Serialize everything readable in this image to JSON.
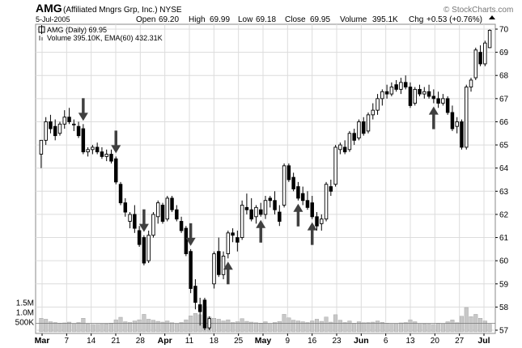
{
  "header": {
    "symbol": "AMG",
    "company": "(Affiliated Mngrs Grp, Inc.) NYSE",
    "date": "5-Jul-2005",
    "open_label": "Open",
    "open": "69.20",
    "high_label": "High",
    "high": "69.99",
    "low_label": "Low",
    "low": "69.18",
    "close_label": "Close",
    "close": "69.95",
    "volume_label": "Volume",
    "volume": "395.1K",
    "chg_label": "Chg",
    "chg": "+0.53 (+0.76%)",
    "watermark": "© StockCharts.com"
  },
  "legend": {
    "price_line": "AMG (Daily) 69.95",
    "volume_line": "Volume 395.10K, EMA(60) 432.31K"
  },
  "colors": {
    "up": "#ffffff",
    "down": "#000000",
    "volume_bar": "#c8c8c8",
    "grid": "#dcdcdc",
    "arrow": "#404040"
  },
  "chart_data": {
    "type": "candlestick",
    "title": "AMG (Daily) 69.95",
    "ylim": [
      57,
      70
    ],
    "y_ticks": [
      "57",
      "58",
      "59",
      "60",
      "61",
      "62",
      "63",
      "64",
      "65",
      "66",
      "67",
      "68",
      "69",
      "70"
    ],
    "x_labels": [
      "Mar",
      "7",
      "14",
      "21",
      "28",
      "Apr",
      "11",
      "18",
      "25",
      "May",
      "9",
      "16",
      "23",
      "Jun",
      "6",
      "13",
      "20",
      "27",
      "Jul"
    ],
    "volume_ticks": [
      "500K",
      "1.0M",
      "1.5M"
    ],
    "volume_ema": 432310,
    "grid": true,
    "arrows": [
      {
        "direction": "down",
        "index": 9
      },
      {
        "direction": "down",
        "index": 16
      },
      {
        "direction": "down",
        "index": 22
      },
      {
        "direction": "down",
        "index": 32
      },
      {
        "direction": "up",
        "index": 40
      },
      {
        "direction": "up",
        "index": 47
      },
      {
        "direction": "up",
        "index": 55
      },
      {
        "direction": "up",
        "index": 58
      },
      {
        "direction": "up",
        "index": 84
      }
    ],
    "candles": [
      {
        "o": 64.6,
        "h": 65.2,
        "l": 64.0,
        "c": 65.2,
        "v": 700000
      },
      {
        "o": 65.2,
        "h": 66.2,
        "l": 65.0,
        "c": 66.0,
        "v": 650000
      },
      {
        "o": 66.0,
        "h": 66.3,
        "l": 65.5,
        "c": 65.7,
        "v": 520000
      },
      {
        "o": 65.8,
        "h": 66.1,
        "l": 65.2,
        "c": 65.4,
        "v": 480000
      },
      {
        "o": 65.5,
        "h": 66.0,
        "l": 65.4,
        "c": 65.9,
        "v": 450000
      },
      {
        "o": 65.9,
        "h": 66.5,
        "l": 65.7,
        "c": 66.2,
        "v": 460000
      },
      {
        "o": 66.2,
        "h": 66.6,
        "l": 65.9,
        "c": 66.0,
        "v": 500000
      },
      {
        "o": 65.9,
        "h": 66.1,
        "l": 65.6,
        "c": 65.9,
        "v": 420000
      },
      {
        "o": 65.8,
        "h": 66.0,
        "l": 65.3,
        "c": 65.4,
        "v": 480000
      },
      {
        "o": 65.7,
        "h": 65.9,
        "l": 64.6,
        "c": 64.7,
        "v": 700000
      },
      {
        "o": 64.7,
        "h": 64.9,
        "l": 64.5,
        "c": 64.8,
        "v": 400000
      },
      {
        "o": 64.8,
        "h": 65.0,
        "l": 64.6,
        "c": 64.9,
        "v": 380000
      },
      {
        "o": 64.9,
        "h": 65.1,
        "l": 64.6,
        "c": 64.7,
        "v": 390000
      },
      {
        "o": 64.7,
        "h": 64.9,
        "l": 64.4,
        "c": 64.5,
        "v": 420000
      },
      {
        "o": 64.5,
        "h": 64.8,
        "l": 64.3,
        "c": 64.6,
        "v": 410000
      },
      {
        "o": 64.6,
        "h": 64.8,
        "l": 64.2,
        "c": 64.3,
        "v": 450000
      },
      {
        "o": 64.4,
        "h": 64.5,
        "l": 63.3,
        "c": 63.4,
        "v": 620000
      },
      {
        "o": 63.3,
        "h": 63.4,
        "l": 62.4,
        "c": 62.5,
        "v": 750000
      },
      {
        "o": 62.5,
        "h": 62.7,
        "l": 61.9,
        "c": 62.1,
        "v": 520000
      },
      {
        "o": 61.7,
        "h": 62.1,
        "l": 61.4,
        "c": 62.0,
        "v": 480000
      },
      {
        "o": 62.0,
        "h": 62.4,
        "l": 61.2,
        "c": 61.4,
        "v": 560000
      },
      {
        "o": 61.3,
        "h": 61.5,
        "l": 60.6,
        "c": 60.7,
        "v": 620000
      },
      {
        "o": 61.0,
        "h": 61.1,
        "l": 59.8,
        "c": 59.9,
        "v": 900000
      },
      {
        "o": 60.0,
        "h": 61.3,
        "l": 59.9,
        "c": 61.1,
        "v": 650000
      },
      {
        "o": 61.1,
        "h": 62.1,
        "l": 61.0,
        "c": 62.0,
        "v": 600000
      },
      {
        "o": 61.9,
        "h": 62.6,
        "l": 61.6,
        "c": 62.5,
        "v": 540000
      },
      {
        "o": 62.4,
        "h": 62.5,
        "l": 61.6,
        "c": 61.7,
        "v": 500000
      },
      {
        "o": 61.8,
        "h": 62.8,
        "l": 61.7,
        "c": 62.7,
        "v": 560000
      },
      {
        "o": 62.7,
        "h": 62.8,
        "l": 62.1,
        "c": 62.2,
        "v": 470000
      },
      {
        "o": 62.2,
        "h": 62.4,
        "l": 61.7,
        "c": 61.8,
        "v": 420000
      },
      {
        "o": 61.7,
        "h": 61.9,
        "l": 61.2,
        "c": 61.3,
        "v": 480000
      },
      {
        "o": 61.4,
        "h": 61.5,
        "l": 60.2,
        "c": 60.3,
        "v": 620000
      },
      {
        "o": 60.4,
        "h": 60.5,
        "l": 58.6,
        "c": 58.8,
        "v": 820000
      },
      {
        "o": 58.9,
        "h": 59.2,
        "l": 57.9,
        "c": 58.2,
        "v": 950000
      },
      {
        "o": 58.1,
        "h": 58.4,
        "l": 57.2,
        "c": 57.8,
        "v": 880000
      },
      {
        "o": 58.3,
        "h": 58.4,
        "l": 57.0,
        "c": 57.1,
        "v": 1300000
      },
      {
        "o": 57.1,
        "h": 57.6,
        "l": 57.0,
        "c": 57.5,
        "v": 760000
      },
      {
        "o": 59.0,
        "h": 60.4,
        "l": 58.8,
        "c": 60.3,
        "v": 700000
      },
      {
        "o": 60.4,
        "h": 61.0,
        "l": 59.3,
        "c": 59.4,
        "v": 650000
      },
      {
        "o": 59.4,
        "h": 60.4,
        "l": 59.2,
        "c": 60.2,
        "v": 560000
      },
      {
        "o": 60.3,
        "h": 61.3,
        "l": 60.1,
        "c": 61.2,
        "v": 620000
      },
      {
        "o": 61.2,
        "h": 61.4,
        "l": 60.8,
        "c": 61.1,
        "v": 480000
      },
      {
        "o": 61.0,
        "h": 61.3,
        "l": 60.4,
        "c": 60.8,
        "v": 520000
      },
      {
        "o": 61.0,
        "h": 62.6,
        "l": 60.9,
        "c": 62.4,
        "v": 680000
      },
      {
        "o": 62.3,
        "h": 62.9,
        "l": 62.0,
        "c": 62.2,
        "v": 540000
      },
      {
        "o": 62.2,
        "h": 62.7,
        "l": 61.7,
        "c": 61.8,
        "v": 500000
      },
      {
        "o": 61.9,
        "h": 62.4,
        "l": 61.6,
        "c": 62.3,
        "v": 470000
      },
      {
        "o": 62.2,
        "h": 62.5,
        "l": 61.9,
        "c": 62.0,
        "v": 450000
      },
      {
        "o": 62.0,
        "h": 62.8,
        "l": 61.8,
        "c": 62.6,
        "v": 520000
      },
      {
        "o": 62.7,
        "h": 62.8,
        "l": 62.3,
        "c": 62.6,
        "v": 430000
      },
      {
        "o": 62.6,
        "h": 63.0,
        "l": 62.0,
        "c": 62.2,
        "v": 480000
      },
      {
        "o": 62.1,
        "h": 62.4,
        "l": 61.5,
        "c": 61.7,
        "v": 530000
      },
      {
        "o": 62.4,
        "h": 64.2,
        "l": 62.3,
        "c": 64.1,
        "v": 900000
      },
      {
        "o": 64.1,
        "h": 64.2,
        "l": 63.4,
        "c": 63.5,
        "v": 720000
      },
      {
        "o": 63.6,
        "h": 63.8,
        "l": 63.0,
        "c": 63.1,
        "v": 600000
      },
      {
        "o": 63.2,
        "h": 63.4,
        "l": 62.6,
        "c": 62.7,
        "v": 560000
      },
      {
        "o": 62.9,
        "h": 63.2,
        "l": 62.4,
        "c": 62.6,
        "v": 520000
      },
      {
        "o": 62.6,
        "h": 63.0,
        "l": 62.2,
        "c": 62.3,
        "v": 480000
      },
      {
        "o": 62.5,
        "h": 62.8,
        "l": 61.8,
        "c": 61.9,
        "v": 560000
      },
      {
        "o": 61.9,
        "h": 62.1,
        "l": 61.3,
        "c": 61.5,
        "v": 650000
      },
      {
        "o": 61.6,
        "h": 62.0,
        "l": 61.3,
        "c": 61.8,
        "v": 540000
      },
      {
        "o": 61.8,
        "h": 63.4,
        "l": 61.7,
        "c": 63.3,
        "v": 760000
      },
      {
        "o": 63.2,
        "h": 63.5,
        "l": 62.8,
        "c": 63.0,
        "v": 500000
      },
      {
        "o": 63.3,
        "h": 65.0,
        "l": 63.2,
        "c": 64.9,
        "v": 880000
      },
      {
        "o": 64.8,
        "h": 65.1,
        "l": 64.6,
        "c": 65.0,
        "v": 600000
      },
      {
        "o": 64.9,
        "h": 65.2,
        "l": 64.6,
        "c": 64.7,
        "v": 480000
      },
      {
        "o": 64.8,
        "h": 65.6,
        "l": 64.7,
        "c": 65.5,
        "v": 560000
      },
      {
        "o": 65.5,
        "h": 65.7,
        "l": 65.0,
        "c": 65.2,
        "v": 440000
      },
      {
        "o": 65.3,
        "h": 66.1,
        "l": 65.2,
        "c": 66.0,
        "v": 520000
      },
      {
        "o": 66.0,
        "h": 66.2,
        "l": 65.4,
        "c": 65.5,
        "v": 470000
      },
      {
        "o": 65.6,
        "h": 66.4,
        "l": 65.5,
        "c": 66.3,
        "v": 480000
      },
      {
        "o": 66.3,
        "h": 66.8,
        "l": 66.1,
        "c": 66.5,
        "v": 500000
      },
      {
        "o": 66.5,
        "h": 67.2,
        "l": 66.3,
        "c": 67.0,
        "v": 560000
      },
      {
        "o": 67.0,
        "h": 67.4,
        "l": 66.7,
        "c": 67.3,
        "v": 490000
      },
      {
        "o": 67.3,
        "h": 67.6,
        "l": 67.0,
        "c": 67.2,
        "v": 440000
      },
      {
        "o": 67.2,
        "h": 67.7,
        "l": 67.1,
        "c": 67.5,
        "v": 430000
      },
      {
        "o": 67.6,
        "h": 67.8,
        "l": 67.3,
        "c": 67.4,
        "v": 420000
      },
      {
        "o": 67.4,
        "h": 67.9,
        "l": 67.2,
        "c": 67.7,
        "v": 460000
      },
      {
        "o": 67.7,
        "h": 68.0,
        "l": 67.4,
        "c": 67.5,
        "v": 480000
      },
      {
        "o": 67.5,
        "h": 67.7,
        "l": 66.6,
        "c": 66.7,
        "v": 620000
      },
      {
        "o": 66.8,
        "h": 67.5,
        "l": 66.7,
        "c": 67.4,
        "v": 520000
      },
      {
        "o": 67.4,
        "h": 67.6,
        "l": 67.1,
        "c": 67.2,
        "v": 430000
      },
      {
        "o": 67.2,
        "h": 67.5,
        "l": 67.0,
        "c": 67.3,
        "v": 410000
      },
      {
        "o": 67.3,
        "h": 67.6,
        "l": 67.0,
        "c": 67.1,
        "v": 400000
      },
      {
        "o": 67.1,
        "h": 67.4,
        "l": 66.8,
        "c": 67.0,
        "v": 380000
      },
      {
        "o": 67.0,
        "h": 67.3,
        "l": 66.6,
        "c": 66.8,
        "v": 440000
      },
      {
        "o": 66.8,
        "h": 67.2,
        "l": 66.7,
        "c": 67.0,
        "v": 420000
      },
      {
        "o": 67.0,
        "h": 67.1,
        "l": 66.3,
        "c": 66.4,
        "v": 520000
      },
      {
        "o": 66.4,
        "h": 66.7,
        "l": 65.6,
        "c": 65.7,
        "v": 610000
      },
      {
        "o": 65.8,
        "h": 66.2,
        "l": 65.5,
        "c": 66.0,
        "v": 470000
      },
      {
        "o": 66.0,
        "h": 66.1,
        "l": 64.8,
        "c": 64.9,
        "v": 800000
      },
      {
        "o": 64.9,
        "h": 67.6,
        "l": 64.8,
        "c": 67.5,
        "v": 1250000
      },
      {
        "o": 67.5,
        "h": 67.9,
        "l": 67.3,
        "c": 67.8,
        "v": 780000
      },
      {
        "o": 67.9,
        "h": 69.2,
        "l": 67.8,
        "c": 69.1,
        "v": 900000
      },
      {
        "o": 69.0,
        "h": 69.3,
        "l": 68.4,
        "c": 68.5,
        "v": 700000
      },
      {
        "o": 68.5,
        "h": 69.5,
        "l": 68.4,
        "c": 69.4,
        "v": 560000
      },
      {
        "o": 69.2,
        "h": 69.99,
        "l": 69.18,
        "c": 69.95,
        "v": 395100
      }
    ]
  }
}
